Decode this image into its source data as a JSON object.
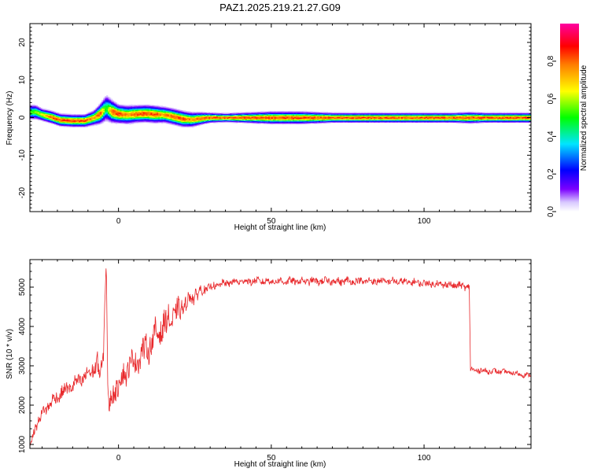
{
  "title": "PAZ1.2025.219.21.27.G09",
  "chart_data": [
    {
      "type": "heatmap",
      "title": "PAZ1.2025.219.21.27.G09",
      "xlabel": "Height of straight line (km)",
      "ylabel": "Frequency (Hz)",
      "xlim": [
        -29,
        135
      ],
      "ylim": [
        -25,
        25
      ],
      "x_ticks": [
        0,
        50,
        100
      ],
      "y_ticks": [
        -20,
        -10,
        0,
        10,
        20
      ],
      "grid": false,
      "colorbar": {
        "label": "Normalized spectral amplitude",
        "range": [
          0,
          1
        ],
        "ticks": [
          0.0,
          0.2,
          0.4,
          0.6,
          0.8
        ],
        "colors": [
          "#ffffff",
          "#7b00ff",
          "#0000ff",
          "#00e5ff",
          "#00ff00",
          "#ffff00",
          "#ff0000",
          "#ff00ff"
        ]
      },
      "ridge": {
        "x": [
          -27,
          -25,
          -22,
          -19,
          -15,
          -11,
          -8,
          -6,
          -4,
          -2,
          0,
          3,
          6,
          9,
          12,
          15,
          18,
          21,
          24,
          27,
          30,
          35,
          40,
          50,
          60,
          70,
          80,
          90,
          100,
          110,
          115,
          120,
          125,
          130,
          135
        ],
        "center_hz": [
          1.5,
          0.8,
          0.2,
          -0.6,
          -0.8,
          -0.8,
          0.0,
          1.0,
          2.6,
          1.6,
          1.0,
          0.8,
          1.0,
          1.1,
          0.9,
          0.8,
          0.3,
          -0.3,
          -0.5,
          -0.2,
          0.0,
          0.0,
          0.0,
          0.0,
          0.0,
          0.0,
          0.0,
          0.0,
          0.0,
          0.0,
          0.0,
          0.0,
          0.0,
          0.0,
          0.0
        ],
        "peak": [
          0.6,
          0.7,
          0.9,
          0.9,
          0.9,
          0.9,
          0.8,
          0.9,
          0.5,
          0.9,
          0.9,
          0.8,
          0.9,
          0.9,
          0.9,
          0.8,
          0.9,
          0.9,
          0.8,
          0.9,
          0.9,
          0.9,
          0.9,
          0.9,
          0.9,
          0.9,
          0.9,
          0.9,
          0.9,
          0.9,
          0.9,
          0.9,
          0.9,
          0.9,
          0.9
        ],
        "halfwidth_hz": [
          1.2,
          1.0,
          1.0,
          1.0,
          1.0,
          1.0,
          1.2,
          1.6,
          2.2,
          1.8,
          1.5,
          1.5,
          1.4,
          1.4,
          1.4,
          1.3,
          1.3,
          1.3,
          1.2,
          1.0,
          0.8,
          0.7,
          0.8,
          1.0,
          1.0,
          0.8,
          0.8,
          0.8,
          0.8,
          0.8,
          0.9,
          0.8,
          0.8,
          0.8,
          0.8
        ]
      }
    },
    {
      "type": "line",
      "xlabel": "Height of straight line (km)",
      "ylabel": "SNR (10 * v/v)",
      "xlim": [
        -29,
        135
      ],
      "ylim": [
        900,
        5700
      ],
      "x_ticks": [
        0,
        50,
        100
      ],
      "y_ticks": [
        1000,
        2000,
        3000,
        4000,
        5000
      ],
      "grid": false,
      "series": [
        {
          "color": "#e8282b",
          "x": [
            -29,
            -27,
            -24,
            -21,
            -18,
            -15,
            -12,
            -9,
            -7,
            -6,
            -5,
            -4.5,
            -4,
            -3.5,
            -3,
            -2,
            0,
            2,
            4,
            6,
            8,
            10,
            12,
            15,
            18,
            21,
            24,
            27,
            30,
            35,
            40,
            50,
            60,
            70,
            80,
            90,
            100,
            110,
            114.8,
            115.2,
            118,
            122,
            126,
            130,
            135
          ],
          "y": [
            950,
            1500,
            1900,
            2150,
            2350,
            2500,
            2650,
            2850,
            3050,
            2700,
            3200,
            4600,
            5650,
            2400,
            1850,
            2300,
            2550,
            2800,
            3050,
            3150,
            3350,
            3500,
            3750,
            4050,
            4250,
            4500,
            4750,
            4900,
            5000,
            5100,
            5150,
            5150,
            5150,
            5150,
            5150,
            5150,
            5100,
            5050,
            5000,
            2900,
            2880,
            2860,
            2850,
            2800,
            2750
          ],
          "noise": [
            60,
            150,
            180,
            180,
            200,
            200,
            220,
            250,
            300,
            300,
            300,
            100,
            0,
            0,
            250,
            350,
            350,
            350,
            380,
            380,
            380,
            380,
            400,
            400,
            380,
            300,
            250,
            150,
            110,
            100,
            100,
            100,
            100,
            110,
            100,
            100,
            100,
            100,
            100,
            80,
            80,
            80,
            70,
            70,
            70
          ]
        }
      ]
    }
  ]
}
